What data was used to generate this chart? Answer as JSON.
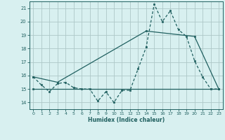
{
  "xlabel": "Humidex (Indice chaleur)",
  "xlim": [
    -0.5,
    23.5
  ],
  "ylim": [
    13.5,
    21.5
  ],
  "yticks": [
    14,
    15,
    16,
    17,
    18,
    19,
    20,
    21
  ],
  "xticks": [
    0,
    1,
    2,
    3,
    4,
    5,
    6,
    7,
    8,
    9,
    10,
    11,
    12,
    13,
    14,
    15,
    16,
    17,
    18,
    19,
    20,
    21,
    22,
    23
  ],
  "bg_color": "#d8f0f0",
  "grid_color": "#aec8c8",
  "line_color": "#206060",
  "line1_x": [
    0,
    1,
    2,
    3,
    4,
    5,
    6,
    7,
    8,
    9,
    10,
    11,
    12,
    13,
    14,
    15,
    16,
    17,
    18,
    19,
    20,
    21,
    22,
    23
  ],
  "line1_y": [
    15.9,
    15.3,
    14.8,
    15.4,
    15.5,
    15.1,
    15.0,
    15.0,
    14.1,
    14.8,
    14.0,
    14.9,
    14.9,
    16.5,
    18.1,
    21.3,
    20.0,
    20.8,
    19.4,
    18.9,
    17.1,
    15.9,
    15.0,
    15.0
  ],
  "line2_x": [
    0,
    3,
    14,
    20,
    23
  ],
  "line2_y": [
    15.9,
    15.5,
    19.3,
    18.9,
    15.0
  ],
  "line3_x": [
    0,
    23
  ],
  "line3_y": [
    15.0,
    15.0
  ],
  "marker_size": 2.0,
  "line_width": 0.9
}
